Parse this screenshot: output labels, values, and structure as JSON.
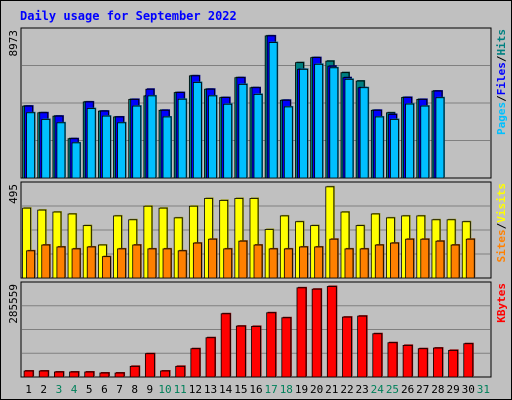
{
  "chart_data": {
    "type": "bar",
    "title": "Daily usage for September 2022",
    "days": [
      "1",
      "2",
      "3",
      "4",
      "5",
      "6",
      "7",
      "8",
      "9",
      "10",
      "11",
      "12",
      "13",
      "14",
      "15",
      "16",
      "17",
      "18",
      "19",
      "20",
      "21",
      "22",
      "23",
      "24",
      "25",
      "26",
      "27",
      "28",
      "29",
      "30",
      "31"
    ],
    "weekend_days": [
      "3",
      "4",
      "10",
      "11",
      "17",
      "18",
      "24",
      "25",
      "31"
    ],
    "panels": [
      {
        "id": "pages-files-hits",
        "ymax": 8973,
        "ymax_label": "8973",
        "grid": true,
        "legend": [
          {
            "label": "Pages",
            "color": "#00c0ff"
          },
          {
            "label": "Files",
            "color": "#0000ff"
          },
          {
            "label": "Hits",
            "color": "#008080"
          }
        ],
        "series": [
          {
            "name": "Hits",
            "color": "#008080",
            "values": [
              4300,
              3900,
              3700,
              2350,
              4550,
              4000,
              3650,
              4700,
              4910,
              4050,
              5110,
              6110,
              5310,
              4810,
              6000,
              5400,
              8500,
              4650,
              6900,
              7200,
              6990,
              6300,
              5800,
              4050,
              3900,
              4820,
              4700,
              5200,
              0,
              0,
              0
            ]
          },
          {
            "name": "Files",
            "color": "#0000ff",
            "values": [
              4300,
              3900,
              3700,
              2350,
              4550,
              4000,
              3650,
              4700,
              5310,
              4050,
              5110,
              6110,
              5310,
              4810,
              6000,
              5400,
              8500,
              4650,
              6500,
              7200,
              6690,
              6000,
              5400,
              4050,
              3800,
              4820,
              4700,
              5200,
              0,
              0,
              0
            ]
          },
          {
            "name": "Pages",
            "color": "#00c0ff",
            "values": [
              3900,
              3500,
              3300,
              2100,
              4150,
              3700,
              3300,
              4300,
              4910,
              3650,
              4710,
              5710,
              4910,
              4410,
              5600,
              5000,
              8100,
              4250,
              6500,
              6800,
              6590,
              5900,
              5400,
              3650,
              3500,
              4420,
              4300,
              4800,
              0,
              0,
              0
            ]
          }
        ]
      },
      {
        "id": "sites-visits",
        "ymax": 495,
        "ymax_label": "495",
        "grid": true,
        "legend": [
          {
            "label": "Sites",
            "color": "#ff8000"
          },
          {
            "label": "Visits",
            "color": "#ffff00"
          }
        ],
        "series": [
          {
            "name": "Visits",
            "color": "#ffff00",
            "values": [
              360,
              350,
              340,
              330,
              270,
              170,
              320,
              300,
              370,
              360,
              310,
              370,
              410,
              400,
              410,
              410,
              250,
              320,
              290,
              270,
              470,
              340,
              270,
              330,
              310,
              320,
              320,
              300,
              300,
              290,
              0
            ]
          },
          {
            "name": "Sites",
            "color": "#ff8000",
            "values": [
              140,
              170,
              160,
              150,
              160,
              110,
              150,
              170,
              150,
              150,
              140,
              180,
              200,
              150,
              190,
              170,
              150,
              150,
              160,
              160,
              200,
              150,
              150,
              170,
              180,
              200,
              200,
              190,
              170,
              200,
              0
            ]
          }
        ]
      },
      {
        "id": "kbytes",
        "ymax": 285559,
        "ymax_label": "285559",
        "grid": true,
        "legend": [
          {
            "label": "KBytes",
            "color": "#ff0000"
          }
        ],
        "series": [
          {
            "name": "KBytes",
            "color": "#ff0000",
            "values": [
              18000,
              18000,
              15000,
              15000,
              15000,
              12000,
              12000,
              32000,
              70000,
              18000,
              32000,
              85000,
              118000,
              190000,
              153000,
              152000,
              193000,
              178000,
              268000,
              264000,
              272000,
              180000,
              183000,
              130000,
              103000,
              95000,
              85000,
              87000,
              80000,
              100000,
              0
            ]
          }
        ]
      }
    ]
  }
}
